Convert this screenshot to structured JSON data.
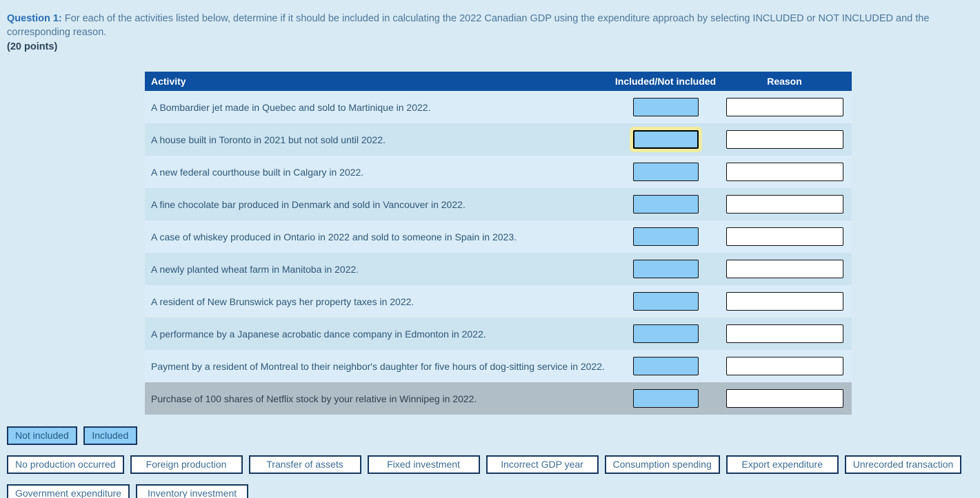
{
  "question": {
    "label": "Question 1:",
    "text": "For each of the activities listed below, determine if it should be included in calculating the 2022 Canadian GDP using the expenditure approach by selecting INCLUDED or NOT INCLUDED and the corresponding reason.",
    "points": "(20 points)"
  },
  "table": {
    "headers": [
      "Activity",
      "Included/Not included",
      "Reason"
    ],
    "rows": [
      {
        "activity": "A Bombardier jet made in Quebec and sold to Martinique in 2022.",
        "highlighted": false,
        "selected": false
      },
      {
        "activity": "A house built in Toronto in 2021 but not sold until 2022.",
        "highlighted": true,
        "selected": false
      },
      {
        "activity": "A new federal courthouse built in Calgary in 2022.",
        "highlighted": false,
        "selected": false
      },
      {
        "activity": "A fine chocolate bar produced in Denmark and sold in Vancouver in 2022.",
        "highlighted": false,
        "selected": false
      },
      {
        "activity": "A case of whiskey produced in Ontario in 2022 and sold to someone in Spain in 2023.",
        "highlighted": false,
        "selected": false
      },
      {
        "activity": "A newly planted wheat farm in Manitoba in 2022.",
        "highlighted": false,
        "selected": false
      },
      {
        "activity": "A resident of New Brunswick pays her property taxes in 2022.",
        "highlighted": false,
        "selected": false
      },
      {
        "activity": "A performance by a Japanese acrobatic dance company in Edmonton in 2022.",
        "highlighted": false,
        "selected": false
      },
      {
        "activity": "Payment by a resident of Montreal to their neighbor's daughter for five hours of dog-sitting service in 2022.",
        "highlighted": false,
        "selected": false
      },
      {
        "activity": "Purchase of 100 shares of Netflix stock by your relative in Winnipeg in 2022.",
        "highlighted": false,
        "selected": true
      }
    ]
  },
  "choice_chips": [
    "Not included",
    "Included"
  ],
  "reason_chips": {
    "row1": [
      "No production occurred",
      "Foreign production",
      "Transfer of assets",
      "Fixed investment",
      "Incorrect GDP year",
      "Consumption spending",
      "Export expenditure",
      "Unrecorded transaction"
    ],
    "row2": [
      "Government expenditure",
      "Inventory investment"
    ]
  },
  "colors": {
    "page_bg": "#d8eaf4",
    "header_bg": "#0d4fa0",
    "row_even": "#daecf7",
    "row_odd": "#cce3f0",
    "selected_row_bg": "#b0bec8",
    "dropzone_blue": "#8cccf5",
    "highlight_ring": "#f1eca0",
    "chip_border": "#16365e",
    "chip_text": "#3f6e92",
    "q_label": "#2a6db4",
    "q_text": "#4e7698",
    "q_points": "#2c4659",
    "row_text": "#2f5876"
  }
}
